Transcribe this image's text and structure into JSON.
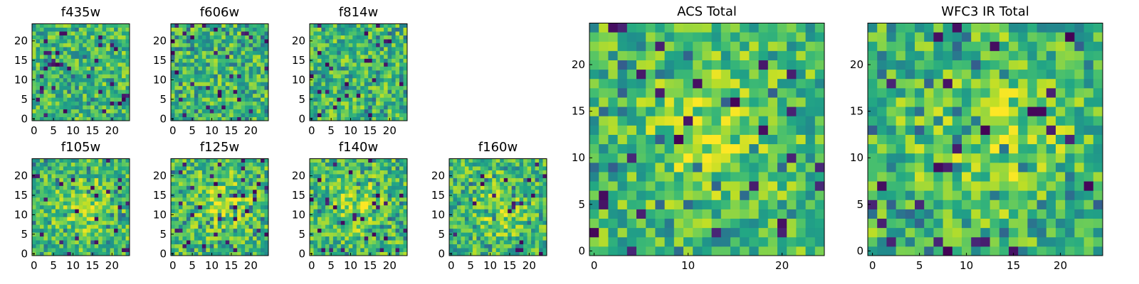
{
  "chart_data": [
    {
      "type": "heatmap",
      "title": "f435w",
      "x_ticks": [
        0,
        5,
        10,
        15,
        20
      ],
      "y_ticks": [
        0,
        5,
        10,
        15,
        20
      ],
      "xlim": [
        -0.5,
        24.5
      ],
      "ylim": [
        -0.5,
        24.5
      ],
      "grid": [
        25,
        25
      ],
      "colormap": "viridis",
      "seed": 11
    },
    {
      "type": "heatmap",
      "title": "f606w",
      "x_ticks": [
        0,
        5,
        10,
        15,
        20
      ],
      "y_ticks": [
        0,
        5,
        10,
        15,
        20
      ],
      "xlim": [
        -0.5,
        24.5
      ],
      "ylim": [
        -0.5,
        24.5
      ],
      "grid": [
        25,
        25
      ],
      "colormap": "viridis",
      "seed": 23
    },
    {
      "type": "heatmap",
      "title": "f814w",
      "x_ticks": [
        0,
        5,
        10,
        15,
        20
      ],
      "y_ticks": [
        0,
        5,
        10,
        15,
        20
      ],
      "xlim": [
        -0.5,
        24.5
      ],
      "ylim": [
        -0.5,
        24.5
      ],
      "grid": [
        25,
        25
      ],
      "colormap": "viridis",
      "seed": 37
    },
    {
      "type": "heatmap",
      "title": "f105w",
      "x_ticks": [
        0,
        5,
        10,
        15,
        20
      ],
      "y_ticks": [
        0,
        5,
        10,
        15,
        20
      ],
      "xlim": [
        -0.5,
        24.5
      ],
      "ylim": [
        -0.5,
        24.5
      ],
      "grid": [
        25,
        25
      ],
      "colormap": "viridis",
      "seed": 41
    },
    {
      "type": "heatmap",
      "title": "f125w",
      "x_ticks": [
        0,
        5,
        10,
        15,
        20
      ],
      "y_ticks": [
        0,
        5,
        10,
        15,
        20
      ],
      "xlim": [
        -0.5,
        24.5
      ],
      "ylim": [
        -0.5,
        24.5
      ],
      "grid": [
        25,
        25
      ],
      "colormap": "viridis",
      "seed": 53
    },
    {
      "type": "heatmap",
      "title": "f140w",
      "x_ticks": [
        0,
        5,
        10,
        15,
        20
      ],
      "y_ticks": [
        0,
        5,
        10,
        15,
        20
      ],
      "xlim": [
        -0.5,
        24.5
      ],
      "ylim": [
        -0.5,
        24.5
      ],
      "grid": [
        25,
        25
      ],
      "colormap": "viridis",
      "seed": 67
    },
    {
      "type": "heatmap",
      "title": "f160w",
      "x_ticks": [
        0,
        5,
        10,
        15,
        20
      ],
      "y_ticks": [
        0,
        5,
        10,
        15,
        20
      ],
      "xlim": [
        -0.5,
        24.5
      ],
      "ylim": [
        -0.5,
        24.5
      ],
      "grid": [
        25,
        25
      ],
      "colormap": "viridis",
      "seed": 79
    },
    {
      "type": "heatmap",
      "title": "ACS Total",
      "x_ticks": [
        0,
        10,
        20
      ],
      "y_ticks": [
        0,
        5,
        10,
        15,
        20
      ],
      "xlim": [
        -0.5,
        24.5
      ],
      "ylim": [
        -0.5,
        24.5
      ],
      "grid": [
        25,
        25
      ],
      "colormap": "viridis",
      "seed": 97
    },
    {
      "type": "heatmap",
      "title": "WFC3 IR Total",
      "x_ticks": [
        0,
        5,
        10,
        15,
        20
      ],
      "y_ticks": [
        0,
        5,
        10,
        15,
        20
      ],
      "xlim": [
        -0.5,
        24.5
      ],
      "ylim": [
        -0.5,
        24.5
      ],
      "grid": [
        25,
        25
      ],
      "colormap": "viridis",
      "seed": 131
    }
  ],
  "colors": {
    "axis": "#000000",
    "background": "#ffffff"
  }
}
